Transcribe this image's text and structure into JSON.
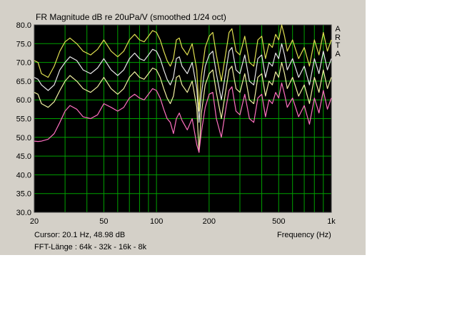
{
  "window": {
    "background": "#d4d0c8",
    "plot_background": "#000000",
    "grid_color": "#00a000",
    "brand_letters": [
      "A",
      "R",
      "T",
      "A"
    ]
  },
  "cursor_readout": "Cursor: 20.1 Hz, 48.98 dB",
  "fft_length": "FFT-Länge : 64k - 32k - 16k - 8k",
  "chart_data": {
    "type": "line",
    "title": "FR Magnitude dB re 20uPa/V (smoothed 1/24 oct)",
    "xlabel": "Frequency (Hz)",
    "ylabel": "",
    "x_scale": "log",
    "xlim": [
      20,
      1000
    ],
    "ylim": [
      30,
      80
    ],
    "grid": true,
    "x_ticks": [
      {
        "value": 20,
        "label": "20"
      },
      {
        "value": 50,
        "label": "50"
      },
      {
        "value": 100,
        "label": "100"
      },
      {
        "value": 200,
        "label": "200"
      },
      {
        "value": 500,
        "label": "500"
      },
      {
        "value": 1000,
        "label": "1k"
      }
    ],
    "y_ticks": [
      {
        "value": 30,
        "label": "30.0"
      },
      {
        "value": 35,
        "label": "35.0"
      },
      {
        "value": 40,
        "label": "40.0"
      },
      {
        "value": 45,
        "label": "45.0"
      },
      {
        "value": 50,
        "label": "50.0"
      },
      {
        "value": 55,
        "label": "55.0"
      },
      {
        "value": 60,
        "label": "60.0"
      },
      {
        "value": 65,
        "label": "65.0"
      },
      {
        "value": 70,
        "label": "70.0"
      },
      {
        "value": 75,
        "label": "75.0"
      },
      {
        "value": 80,
        "label": "80.0"
      }
    ],
    "series": [
      {
        "color": "#e0e050",
        "x": [
          20,
          21,
          22,
          24,
          26,
          28,
          30,
          32,
          35,
          38,
          42,
          46,
          50,
          55,
          60,
          65,
          70,
          75,
          80,
          85,
          90,
          95,
          100,
          105,
          110,
          115,
          120,
          125,
          130,
          135,
          140,
          150,
          160,
          170,
          175,
          180,
          190,
          200,
          210,
          220,
          235,
          250,
          260,
          270,
          285,
          300,
          320,
          340,
          360,
          380,
          400,
          420,
          440,
          460,
          480,
          500,
          520,
          540,
          560,
          600,
          650,
          700,
          750,
          800,
          850,
          900,
          950,
          1000
        ],
        "y": [
          70.5,
          70,
          67,
          66,
          69,
          73,
          75.5,
          76.5,
          75,
          73,
          72,
          73.5,
          76,
          73,
          71.5,
          73,
          76,
          77.5,
          76,
          75.5,
          77,
          78.5,
          78,
          76,
          73,
          70.5,
          69,
          71,
          76,
          76.5,
          74,
          72,
          75,
          68,
          57,
          66,
          74,
          77,
          78,
          72,
          65,
          73,
          78,
          79,
          73,
          72,
          77,
          70,
          69,
          76,
          77,
          71,
          75,
          74,
          77.5,
          76,
          80,
          77,
          73,
          76,
          71,
          74,
          69,
          76,
          72,
          78,
          73,
          76
        ]
      },
      {
        "color": "#e8e8e8",
        "x": [
          20,
          21,
          22,
          24,
          26,
          28,
          30,
          32,
          35,
          38,
          42,
          46,
          50,
          55,
          60,
          65,
          70,
          75,
          80,
          85,
          90,
          95,
          100,
          105,
          110,
          115,
          120,
          125,
          130,
          135,
          140,
          150,
          160,
          170,
          175,
          180,
          190,
          200,
          210,
          220,
          235,
          250,
          260,
          270,
          285,
          300,
          320,
          340,
          360,
          380,
          400,
          420,
          440,
          460,
          480,
          500,
          520,
          540,
          560,
          600,
          650,
          700,
          750,
          800,
          850,
          900,
          950,
          1000
        ],
        "y": [
          66,
          65.5,
          64,
          62.5,
          64,
          68,
          70,
          71.5,
          70.5,
          68,
          67,
          68.5,
          71,
          68,
          66.5,
          68,
          71,
          72.5,
          71,
          70.5,
          72,
          73.5,
          73,
          71,
          68,
          65.5,
          64,
          66,
          71,
          71.5,
          69,
          67,
          70,
          63,
          54,
          61,
          69,
          72,
          73,
          67,
          60,
          68,
          73,
          74,
          68,
          67,
          72,
          65,
          64,
          71,
          72,
          66,
          70,
          69,
          72.5,
          71,
          75,
          72,
          68,
          71,
          66,
          69,
          64,
          71,
          67,
          73,
          68,
          71
        ]
      },
      {
        "color": "#f0f0a0",
        "x": [
          20,
          21,
          22,
          24,
          26,
          28,
          30,
          32,
          35,
          38,
          42,
          46,
          50,
          55,
          60,
          65,
          70,
          75,
          80,
          85,
          90,
          95,
          100,
          105,
          110,
          115,
          120,
          125,
          130,
          135,
          140,
          150,
          160,
          170,
          175,
          180,
          190,
          200,
          210,
          220,
          235,
          250,
          260,
          270,
          285,
          300,
          320,
          340,
          360,
          380,
          400,
          420,
          440,
          460,
          480,
          500,
          520,
          540,
          560,
          600,
          650,
          700,
          750,
          800,
          850,
          900,
          950,
          1000
        ],
        "y": [
          62,
          61.5,
          59,
          58,
          59.5,
          62.5,
          65,
          66.5,
          65,
          63,
          62,
          63.5,
          66,
          63,
          61.5,
          63,
          66,
          67.5,
          66,
          65.5,
          67,
          68.5,
          68,
          66,
          63,
          60.5,
          59,
          61,
          66,
          66.5,
          64,
          62,
          65,
          58,
          46,
          56,
          64,
          67,
          68,
          62,
          55,
          63,
          68,
          69,
          63,
          62,
          67,
          60,
          59,
          66,
          67,
          61,
          65,
          64,
          67.5,
          66,
          70,
          67,
          63,
          66,
          61,
          64,
          59,
          66,
          62,
          68,
          63,
          66
        ]
      },
      {
        "color": "#ff70c0",
        "x": [
          20,
          21,
          22,
          24,
          26,
          28,
          30,
          32,
          35,
          38,
          42,
          46,
          50,
          55,
          60,
          65,
          70,
          75,
          80,
          85,
          90,
          95,
          100,
          105,
          110,
          115,
          120,
          125,
          130,
          135,
          140,
          150,
          160,
          170,
          175,
          180,
          190,
          200,
          210,
          220,
          235,
          250,
          260,
          270,
          285,
          300,
          320,
          340,
          360,
          380,
          400,
          420,
          440,
          460,
          480,
          500,
          520,
          540,
          560,
          600,
          650,
          700,
          750,
          800,
          850,
          900,
          950,
          1000
        ],
        "y": [
          49,
          48.9,
          49,
          49.5,
          51,
          54,
          57,
          58.5,
          57.5,
          55.5,
          55,
          56,
          59,
          58,
          57,
          58,
          60.5,
          61.5,
          60.5,
          60,
          61.5,
          63,
          62.5,
          60.5,
          57.5,
          55,
          54,
          51,
          55,
          56.5,
          54.5,
          52,
          55,
          48,
          46,
          51,
          58,
          61.5,
          62,
          55,
          50,
          58,
          62.5,
          63.5,
          57,
          56,
          61.5,
          55,
          54,
          60.5,
          61.5,
          55.5,
          60,
          59,
          62,
          60.5,
          64.5,
          61.5,
          58,
          60.5,
          55.5,
          58.5,
          53.5,
          60.5,
          56.5,
          62.5,
          57.5,
          60.5
        ]
      }
    ]
  }
}
